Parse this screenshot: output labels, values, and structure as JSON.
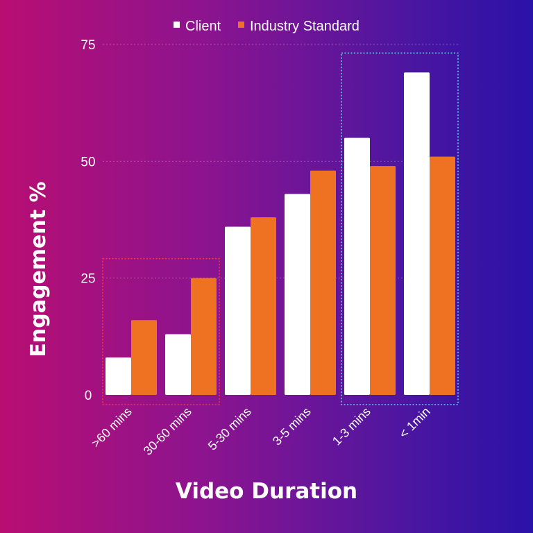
{
  "chart_data": {
    "type": "bar",
    "title": "",
    "xlabel": "Video Duration",
    "ylabel": "Engagement %",
    "categories": [
      ">60 mins",
      "30-60 mins",
      "5-30 mins",
      "3-5 mins",
      "1-3 mins",
      "< 1min"
    ],
    "series": [
      {
        "name": "Client",
        "color": "#ffffff",
        "values": [
          8,
          13,
          36,
          43,
          55,
          69
        ]
      },
      {
        "name": "Industry Standard",
        "color": "#ee7222",
        "values": [
          16,
          25,
          38,
          48,
          49,
          51
        ]
      }
    ],
    "ylim": [
      0,
      75
    ],
    "yticks": [
      "0",
      "25",
      "50",
      "75"
    ],
    "grid": true,
    "legend_position": "top-center",
    "highlights": [
      {
        "categories": [
          ">60 mins",
          "30-60 mins"
        ],
        "color": "#ff3344",
        "style": "dotted"
      },
      {
        "categories": [
          "1-3 mins",
          "< 1min"
        ],
        "color": "#5fd0e0",
        "style": "dotted"
      }
    ]
  }
}
